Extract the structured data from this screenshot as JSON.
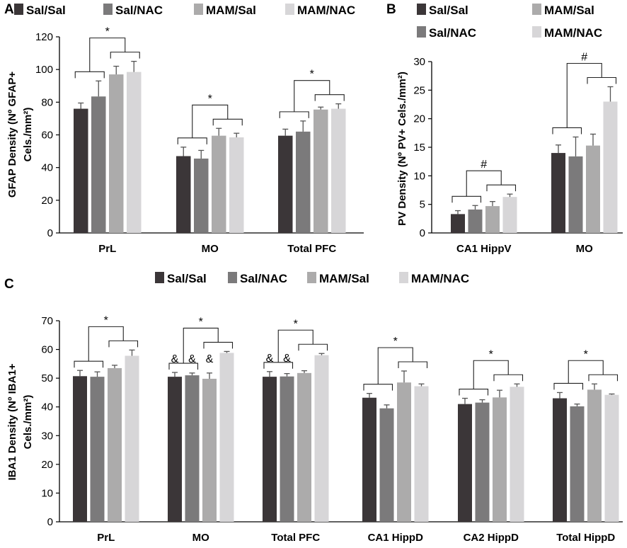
{
  "colors": {
    "Sal/Sal": "#3b3638",
    "Sal/NAC": "#7b7a7b",
    "MAM/Sal": "#acabab",
    "MAM/NAC": "#d7d6d8"
  },
  "chart_data": [
    {
      "panel": "A",
      "type": "bar",
      "title": "",
      "ylabel": [
        "GFAP Density (Nº GFAP+",
        "Cels./mm²)"
      ],
      "xlabel": "",
      "ylim": [
        0,
        120
      ],
      "yticks": [
        0,
        20,
        40,
        60,
        80,
        100,
        120
      ],
      "legend": [
        "Sal/Sal",
        "Sal/NAC",
        "MAM/Sal",
        "MAM/NAC"
      ],
      "categories": [
        "PrL",
        "MO",
        "Total PFC"
      ],
      "series": [
        {
          "name": "Sal/Sal",
          "values": [
            76,
            47,
            59.5
          ],
          "errors": [
            3.5,
            5.5,
            4
          ]
        },
        {
          "name": "Sal/NAC",
          "values": [
            83.5,
            45.5,
            62
          ],
          "errors": [
            9.5,
            5,
            6.5
          ]
        },
        {
          "name": "MAM/Sal",
          "values": [
            97,
            59.5,
            75.5
          ],
          "errors": [
            5,
            4.5,
            1.5
          ]
        },
        {
          "name": "MAM/NAC",
          "values": [
            98.5,
            58.5,
            76
          ],
          "errors": [
            6.5,
            2.5,
            3
          ]
        }
      ],
      "significance": [
        "*",
        "*",
        "*"
      ]
    },
    {
      "panel": "B",
      "type": "bar",
      "title": "",
      "ylabel": [
        "PV Density (Nº PV+ Cels./mm²)"
      ],
      "xlabel": "",
      "ylim": [
        0,
        30
      ],
      "yticks": [
        0,
        5,
        10,
        15,
        20,
        25,
        30
      ],
      "legend": [
        "Sal/Sal",
        "MAM/Sal",
        "Sal/NAC",
        "MAM/NAC"
      ],
      "categories": [
        "CA1 HippV",
        "MO"
      ],
      "series": [
        {
          "name": "Sal/Sal",
          "values": [
            3.3,
            14
          ],
          "errors": [
            0.6,
            1.4
          ]
        },
        {
          "name": "Sal/NAC",
          "values": [
            4.1,
            13.4
          ],
          "errors": [
            0.7,
            3.4
          ]
        },
        {
          "name": "MAM/Sal",
          "values": [
            4.7,
            15.3
          ],
          "errors": [
            0.8,
            2
          ]
        },
        {
          "name": "MAM/NAC",
          "values": [
            6.3,
            23
          ],
          "errors": [
            0.5,
            2.6
          ]
        }
      ],
      "significance": [
        "#",
        "#"
      ]
    },
    {
      "panel": "C",
      "type": "bar",
      "title": "",
      "ylabel": [
        "IBA1 Density (Nº IBA1+",
        "Cels./mm²)"
      ],
      "xlabel": "",
      "ylim": [
        0,
        70
      ],
      "yticks": [
        0,
        10,
        20,
        30,
        40,
        50,
        60,
        70
      ],
      "legend": [
        "Sal/Sal",
        "Sal/NAC",
        "MAM/Sal",
        "MAM/NAC"
      ],
      "categories": [
        "PrL",
        "MO",
        "Total PFC",
        "CA1 HippD",
        "CA2 HippD",
        "Total HippD"
      ],
      "series": [
        {
          "name": "Sal/Sal",
          "values": [
            50.7,
            50.5,
            50.5,
            43.2,
            41,
            43
          ],
          "errors": [
            2,
            1.5,
            1.8,
            1.5,
            2,
            2
          ]
        },
        {
          "name": "Sal/NAC",
          "values": [
            50.5,
            51,
            50.6,
            39.5,
            41.5,
            40.2
          ],
          "errors": [
            1.7,
            0.8,
            1,
            1.2,
            1,
            0.8
          ]
        },
        {
          "name": "MAM/Sal",
          "values": [
            53.5,
            49.8,
            51.8,
            48.5,
            43.3,
            46
          ],
          "errors": [
            1,
            2,
            0.8,
            4,
            2.5,
            2
          ]
        },
        {
          "name": "MAM/NAC",
          "values": [
            57.8,
            58.8,
            58,
            47.2,
            47,
            44.2
          ],
          "errors": [
            2,
            0.5,
            0.6,
            0.8,
            1,
            0.3
          ]
        }
      ],
      "significance": [
        "*",
        "*",
        "*",
        "*",
        "*",
        "*"
      ],
      "ampersand_marks": [
        {
          "category": "MO",
          "series": [
            "Sal/Sal",
            "Sal/NAC",
            "MAM/Sal"
          ],
          "symbol": "&"
        },
        {
          "category": "Total PFC",
          "series": [
            "Sal/Sal",
            "Sal/NAC"
          ],
          "symbol": "&"
        }
      ]
    }
  ]
}
